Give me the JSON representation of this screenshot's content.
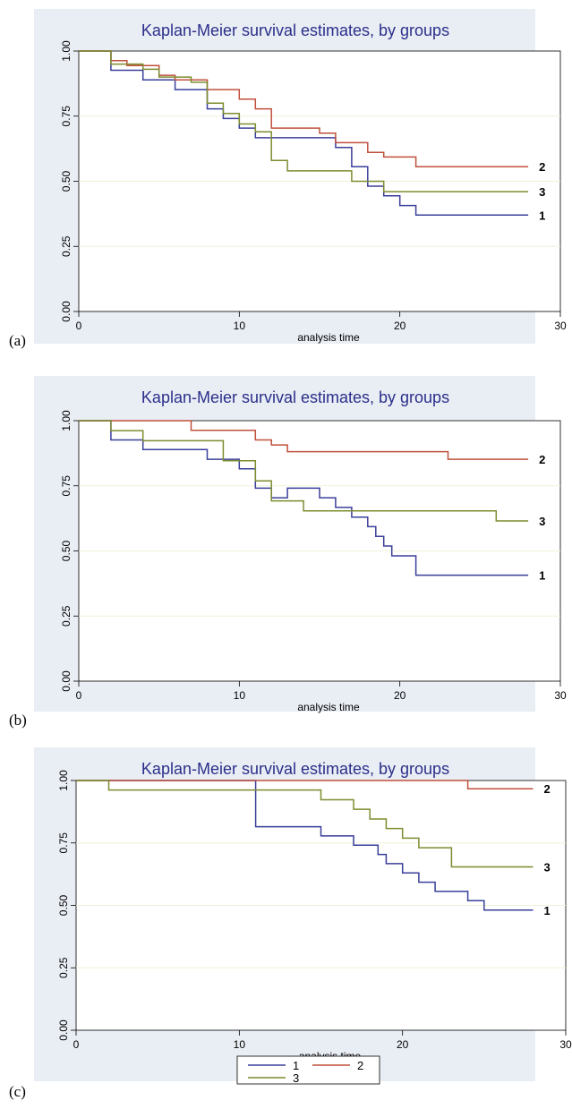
{
  "panels": [
    {
      "letter": "(a)"
    },
    {
      "letter": "(b)"
    },
    {
      "letter": "(c)"
    }
  ],
  "colors": {
    "outer_background": "#e9edf4",
    "plot_background": "#ffffff",
    "gridline": "#eef2d8",
    "title": "#2b2f8a",
    "series_1": "#3a3f9a",
    "series_2": "#c0503c",
    "series_3": "#7d8c2f"
  },
  "chart_data": [
    {
      "type": "line",
      "step": "post",
      "title": "Kaplan-Meier survival estimates, by groups",
      "xlabel": "analysis time",
      "ylabel": "",
      "xlim": [
        0,
        30
      ],
      "ylim": [
        0,
        1
      ],
      "xticks": [
        0,
        10,
        20,
        30
      ],
      "yticks": [
        "0.00",
        "0.25",
        "0.50",
        "0.75",
        "1.00"
      ],
      "grid": true,
      "legend": "none",
      "series": [
        {
          "name": "1",
          "end_label": "1",
          "color_key": "series_1",
          "x": [
            0,
            2,
            4,
            6,
            8,
            9,
            10,
            11,
            12,
            14,
            16,
            17,
            18,
            19,
            20,
            21,
            28
          ],
          "y": [
            1.0,
            0.926,
            0.889,
            0.852,
            0.778,
            0.741,
            0.704,
            0.667,
            0.667,
            0.667,
            0.63,
            0.556,
            0.481,
            0.444,
            0.407,
            0.37,
            0.37
          ]
        },
        {
          "name": "2",
          "end_label": "2",
          "color_key": "series_2",
          "x": [
            0,
            2,
            3,
            5,
            6,
            8,
            10,
            11,
            12,
            15,
            16,
            18,
            19,
            21,
            28
          ],
          "y": [
            1.0,
            0.963,
            0.944,
            0.907,
            0.889,
            0.852,
            0.815,
            0.778,
            0.704,
            0.685,
            0.648,
            0.611,
            0.593,
            0.556,
            0.556
          ]
        },
        {
          "name": "3",
          "end_label": "3",
          "color_key": "series_3",
          "x": [
            0,
            2,
            4,
            5,
            7,
            8,
            9,
            10,
            11,
            12,
            13,
            16,
            17,
            18,
            19,
            28
          ],
          "y": [
            1.0,
            0.95,
            0.93,
            0.9,
            0.88,
            0.8,
            0.76,
            0.72,
            0.69,
            0.58,
            0.54,
            0.54,
            0.5,
            0.5,
            0.46,
            0.46
          ]
        }
      ]
    },
    {
      "type": "line",
      "step": "post",
      "title": "Kaplan-Meier survival estimates, by groups",
      "xlabel": "analysis time",
      "ylabel": "",
      "xlim": [
        0,
        30
      ],
      "ylim": [
        0,
        1
      ],
      "xticks": [
        0,
        10,
        20,
        30
      ],
      "yticks": [
        "0.00",
        "0.25",
        "0.50",
        "0.75",
        "1.00"
      ],
      "grid": true,
      "legend": "none",
      "series": [
        {
          "name": "1",
          "end_label": "1",
          "color_key": "series_1",
          "x": [
            0,
            2,
            4,
            8,
            10,
            11,
            12,
            13,
            15,
            16,
            17,
            18,
            18.5,
            19,
            19.5,
            20,
            21,
            28
          ],
          "y": [
            1.0,
            0.926,
            0.889,
            0.852,
            0.815,
            0.741,
            0.704,
            0.741,
            0.704,
            0.667,
            0.63,
            0.593,
            0.556,
            0.519,
            0.481,
            0.481,
            0.407,
            0.407
          ]
        },
        {
          "name": "2",
          "end_label": "2",
          "color_key": "series_2",
          "x": [
            0,
            7,
            11,
            12,
            13,
            23,
            28
          ],
          "y": [
            1.0,
            0.963,
            0.926,
            0.907,
            0.881,
            0.852,
            0.852
          ]
        },
        {
          "name": "3",
          "end_label": "3",
          "color_key": "series_3",
          "x": [
            0,
            2,
            4,
            9,
            11,
            12,
            14,
            26,
            28
          ],
          "y": [
            1.0,
            0.962,
            0.923,
            0.846,
            0.769,
            0.692,
            0.654,
            0.615,
            0.615
          ]
        }
      ]
    },
    {
      "type": "line",
      "step": "post",
      "title": "Kaplan-Meier survival estimates, by groups",
      "xlabel": "analysis time",
      "ylabel": "",
      "xlim": [
        0,
        30
      ],
      "ylim": [
        0,
        1
      ],
      "xticks": [
        0,
        10,
        20,
        30
      ],
      "yticks": [
        "0.00",
        "0.25",
        "0.50",
        "0.75",
        "1.00"
      ],
      "grid": true,
      "legend": "bottom",
      "series": [
        {
          "name": "1",
          "end_label": "1",
          "color_key": "series_1",
          "x": [
            0,
            11,
            15,
            17,
            18.5,
            19,
            20,
            21,
            22,
            24,
            25,
            28
          ],
          "y": [
            1.0,
            0.815,
            0.778,
            0.741,
            0.704,
            0.667,
            0.63,
            0.593,
            0.556,
            0.519,
            0.481,
            0.481
          ]
        },
        {
          "name": "2",
          "end_label": "2",
          "color_key": "series_2",
          "x": [
            0,
            24,
            28
          ],
          "y": [
            1.0,
            0.967,
            0.967
          ]
        },
        {
          "name": "3",
          "end_label": "3",
          "color_key": "series_3",
          "x": [
            0,
            2,
            15,
            17,
            18,
            19,
            20,
            21,
            23,
            28
          ],
          "y": [
            1.0,
            0.962,
            0.923,
            0.885,
            0.846,
            0.808,
            0.769,
            0.731,
            0.654,
            0.654
          ]
        }
      ]
    }
  ]
}
